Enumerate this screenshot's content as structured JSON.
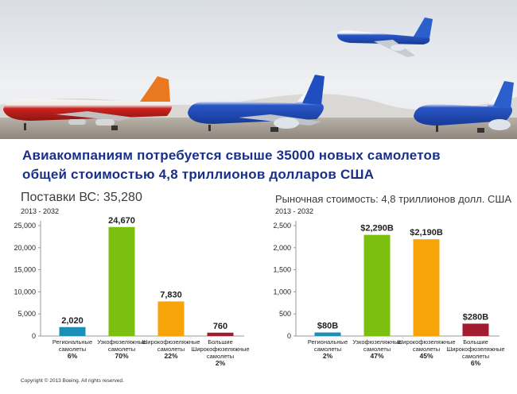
{
  "headline": {
    "line1": "Авиакомпаниям потребуется свыше 35000 новых самолетов",
    "line2": "общей стоимостью 4,8 триллионов долларов США"
  },
  "footer": {
    "copyright": "Copyright © 2013 Boeing. All rights reserved."
  },
  "colors": {
    "headline": "#1a2f86",
    "regional": "#1b8fb6",
    "narrowbody": "#7cc00f",
    "widebody": "#f7a40a",
    "large_widebody": "#a31b2e"
  },
  "chart_data": [
    {
      "type": "bar",
      "title": "Поставки ВС: 35,280",
      "subtitle": "2013 - 2032",
      "categories": [
        [
          "Региональные",
          "самолеты",
          "6%"
        ],
        [
          "Узкофюзеляжные",
          "самолеты",
          "70%"
        ],
        [
          "Широкофюзеляжные",
          "самолеты",
          "22%"
        ],
        [
          "Большие",
          "Широкофюзеляжные",
          "самолеты",
          "2%"
        ]
      ],
      "values": [
        2020,
        24670,
        7830,
        760
      ],
      "value_labels": [
        "2,020",
        "24,670",
        "7,830",
        "760"
      ],
      "ylim": [
        0,
        25000
      ],
      "yticks": [
        0,
        5000,
        10000,
        15000,
        20000,
        25000
      ],
      "ytick_labels": [
        "0",
        "5,000",
        "10,000",
        "15,000",
        "20,000",
        "25,000"
      ],
      "grid": false,
      "legend": "none"
    },
    {
      "type": "bar",
      "title": "Рыночная стоимость: 4,8 триллионов долл. США",
      "subtitle": "2013 - 2032",
      "categories": [
        [
          "Региональные",
          "самолеты",
          "2%"
        ],
        [
          "Узкофюзеляжные",
          "самолеты",
          "47%"
        ],
        [
          "Широкофюзеляжные",
          "самолеты",
          "45%"
        ],
        [
          "Большие",
          "Широкофюзеляжные",
          "самолеты",
          "6%"
        ]
      ],
      "values": [
        80,
        2290,
        2190,
        280
      ],
      "value_labels": [
        "$80B",
        "$2,290B",
        "$2,190B",
        "$280B"
      ],
      "ylim": [
        0,
        2500
      ],
      "yticks": [
        0,
        500,
        1000,
        1500,
        2000,
        2500
      ],
      "ytick_labels": [
        "0",
        "500",
        "1,000",
        "1,500",
        "2,000",
        "2,500"
      ],
      "grid": false,
      "legend": "none"
    }
  ]
}
